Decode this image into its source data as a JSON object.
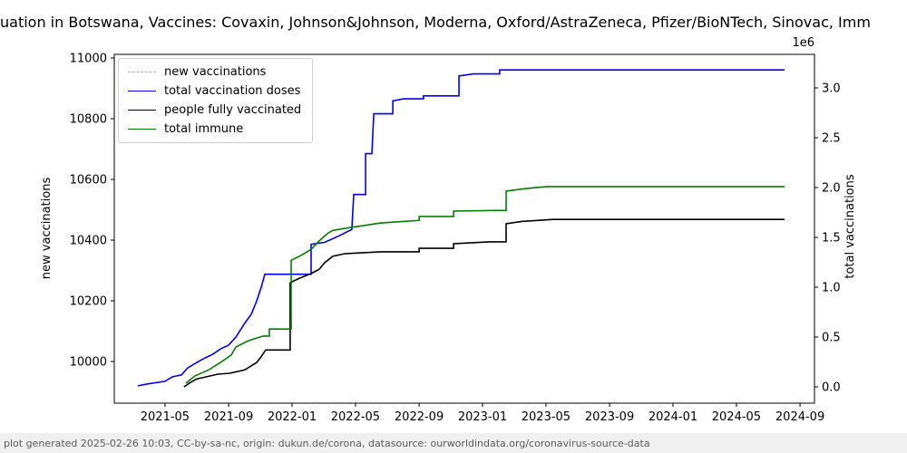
{
  "title": "uation in Botswana, Vaccines: Covaxin, Johnson&Johnson, Moderna, Oxford/AstraZeneca, Pfizer/BioNTech, Sinovac, Imm",
  "footer": "plot generated 2025-02-26 10:03, CC-by-sa-nc, origin: dukun.de/corona, datasource: ourworldindata.org/coronavirus-source-data",
  "chart_data": {
    "type": "line",
    "title": "uation in Botswana, Vaccines: Covaxin, Johnson&Johnson, Moderna, Oxford/AstraZeneca, Pfizer/BioNTech, Sinovac, Imm",
    "xlabel": "",
    "ylabel_left": "new vaccinations",
    "ylabel_right": "total vaccinations",
    "right_axis_multiplier": "1e6",
    "grid": false,
    "legend_position": "upper left",
    "xlim": [
      2021.07,
      2024.74
    ],
    "ylim_left": [
      9863,
      11012
    ],
    "ylim_right": [
      -0.16,
      3.34
    ],
    "x_ticks": [
      {
        "label": "2021-05",
        "t": 2021.333
      },
      {
        "label": "2021-09",
        "t": 2021.667
      },
      {
        "label": "2022-01",
        "t": 2022.0
      },
      {
        "label": "2022-05",
        "t": 2022.333
      },
      {
        "label": "2022-09",
        "t": 2022.667
      },
      {
        "label": "2023-01",
        "t": 2023.0
      },
      {
        "label": "2023-05",
        "t": 2023.333
      },
      {
        "label": "2023-09",
        "t": 2023.667
      },
      {
        "label": "2024-01",
        "t": 2024.0
      },
      {
        "label": "2024-05",
        "t": 2024.333
      },
      {
        "label": "2024-09",
        "t": 2024.667
      }
    ],
    "left_ticks": [
      10000,
      10200,
      10400,
      10600,
      10800,
      11000
    ],
    "right_ticks": [
      {
        "label": "0.0",
        "v": 0.0
      },
      {
        "label": "0.5",
        "v": 0.5
      },
      {
        "label": "1.0",
        "v": 1.0
      },
      {
        "label": "1.5",
        "v": 1.5
      },
      {
        "label": "2.0",
        "v": 2.0
      },
      {
        "label": "2.5",
        "v": 2.5
      },
      {
        "label": "3.0",
        "v": 3.0
      }
    ],
    "series": [
      {
        "name": "new vaccinations",
        "color": "#aaaaaa",
        "dash": "dashed",
        "axis": "left",
        "points": []
      },
      {
        "name": "total vaccination doses",
        "color": "#0000ff",
        "dash": "solid",
        "axis": "right",
        "points": [
          [
            2021.19,
            0.01
          ],
          [
            2021.243,
            0.03
          ],
          [
            2021.333,
            0.055
          ],
          [
            2021.371,
            0.1
          ],
          [
            2021.419,
            0.12
          ],
          [
            2021.452,
            0.19
          ],
          [
            2021.5,
            0.245
          ],
          [
            2021.543,
            0.29
          ],
          [
            2021.586,
            0.33
          ],
          [
            2021.624,
            0.38
          ],
          [
            2021.667,
            0.42
          ],
          [
            2021.705,
            0.5
          ],
          [
            2021.752,
            0.64
          ],
          [
            2021.786,
            0.73
          ],
          [
            2021.814,
            0.86
          ],
          [
            2021.838,
            1.0
          ],
          [
            2021.857,
            1.13
          ],
          [
            2022.1,
            1.13
          ],
          [
            2022.1,
            1.43
          ],
          [
            2022.171,
            1.45
          ],
          [
            2022.252,
            1.52
          ],
          [
            2022.314,
            1.58
          ],
          [
            2022.324,
            1.93
          ],
          [
            2022.386,
            1.93
          ],
          [
            2022.386,
            2.34
          ],
          [
            2022.419,
            2.34
          ],
          [
            2022.429,
            2.74
          ],
          [
            2022.529,
            2.74
          ],
          [
            2022.529,
            2.87
          ],
          [
            2022.586,
            2.89
          ],
          [
            2022.69,
            2.89
          ],
          [
            2022.69,
            2.92
          ],
          [
            2022.876,
            2.92
          ],
          [
            2022.876,
            3.12
          ],
          [
            2022.952,
            3.14
          ],
          [
            2023.09,
            3.14
          ],
          [
            2023.09,
            3.18
          ],
          [
            2024.586,
            3.18
          ]
        ]
      },
      {
        "name": "people fully vaccinated",
        "color": "#000000",
        "dash": "solid",
        "axis": "right",
        "points": [
          [
            2021.433,
            0.0
          ],
          [
            2021.467,
            0.045
          ],
          [
            2021.5,
            0.08
          ],
          [
            2021.548,
            0.1
          ],
          [
            2021.61,
            0.127
          ],
          [
            2021.671,
            0.136
          ],
          [
            2021.752,
            0.17
          ],
          [
            2021.814,
            0.245
          ],
          [
            2021.833,
            0.29
          ],
          [
            2021.862,
            0.37
          ],
          [
            2021.99,
            0.37
          ],
          [
            2021.99,
            1.045
          ],
          [
            2022.038,
            1.09
          ],
          [
            2022.1,
            1.136
          ],
          [
            2022.143,
            1.18
          ],
          [
            2022.171,
            1.245
          ],
          [
            2022.214,
            1.31
          ],
          [
            2022.276,
            1.336
          ],
          [
            2022.467,
            1.355
          ],
          [
            2022.667,
            1.355
          ],
          [
            2022.667,
            1.39
          ],
          [
            2022.848,
            1.39
          ],
          [
            2022.848,
            1.436
          ],
          [
            2023.038,
            1.455
          ],
          [
            2023.124,
            1.455
          ],
          [
            2023.124,
            1.636
          ],
          [
            2023.205,
            1.66
          ],
          [
            2023.371,
            1.68
          ],
          [
            2024.586,
            1.68
          ]
        ]
      },
      {
        "name": "total immune",
        "color": "#008000",
        "dash": "solid",
        "axis": "right",
        "points": [
          [
            2021.443,
            0.036
          ],
          [
            2021.49,
            0.11
          ],
          [
            2021.562,
            0.17
          ],
          [
            2021.624,
            0.245
          ],
          [
            2021.681,
            0.32
          ],
          [
            2021.705,
            0.4
          ],
          [
            2021.767,
            0.46
          ],
          [
            2021.814,
            0.49
          ],
          [
            2021.848,
            0.51
          ],
          [
            2021.881,
            0.51
          ],
          [
            2021.881,
            0.58
          ],
          [
            2021.995,
            0.58
          ],
          [
            2021.995,
            1.27
          ],
          [
            2022.048,
            1.32
          ],
          [
            2022.1,
            1.38
          ],
          [
            2022.133,
            1.445
          ],
          [
            2022.157,
            1.49
          ],
          [
            2022.19,
            1.545
          ],
          [
            2022.214,
            1.57
          ],
          [
            2022.276,
            1.59
          ],
          [
            2022.467,
            1.645
          ],
          [
            2022.667,
            1.67
          ],
          [
            2022.667,
            1.71
          ],
          [
            2022.848,
            1.71
          ],
          [
            2022.848,
            1.764
          ],
          [
            2023.062,
            1.77
          ],
          [
            2023.124,
            1.77
          ],
          [
            2023.124,
            1.964
          ],
          [
            2023.229,
            1.99
          ],
          [
            2023.338,
            2.01
          ],
          [
            2024.586,
            2.01
          ]
        ]
      }
    ]
  }
}
